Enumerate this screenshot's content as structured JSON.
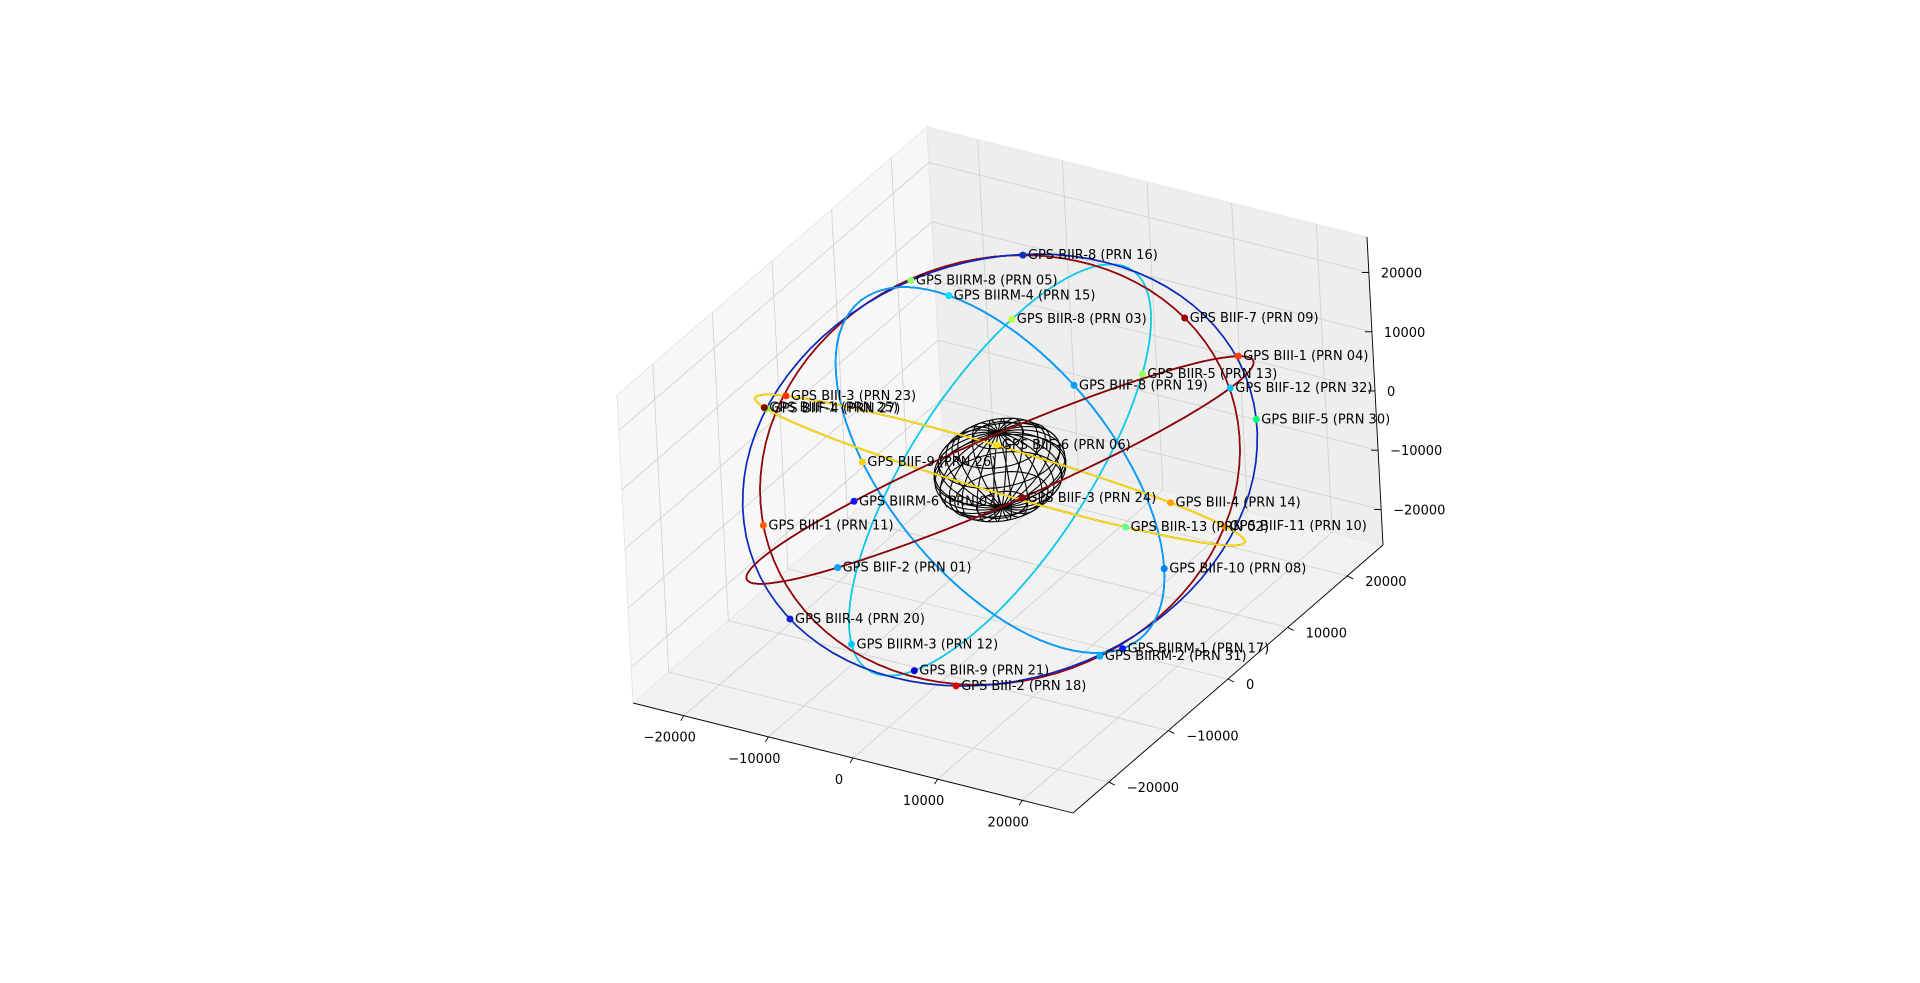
{
  "chart_data": {
    "type": "scatter",
    "projection": "3d",
    "title": "",
    "xlabel": "",
    "ylabel": "",
    "zlabel": "",
    "xlim": [
      -26000,
      26000
    ],
    "ylim": [
      -26000,
      26000
    ],
    "zlim": [
      -26000,
      26000
    ],
    "x_ticks": [
      "−20000",
      "−10000",
      "0",
      "10000",
      "20000"
    ],
    "x_tick_values": [
      -20000,
      -10000,
      0,
      10000,
      20000
    ],
    "y_ticks": [
      "−20000",
      "−10000",
      "0",
      "10000",
      "20000"
    ],
    "y_tick_values": [
      -20000,
      -10000,
      0,
      10000,
      20000
    ],
    "z_ticks": [
      "−20000",
      "−10000",
      "0",
      "10000",
      "20000"
    ],
    "z_tick_values": [
      -20000,
      -10000,
      0,
      10000,
      20000
    ],
    "grid": true,
    "earth_radius": 6371,
    "orbit_radius": 26560,
    "satellites": [
      {
        "label": "GPS BIIF-11 (PRN 10)",
        "color": "#ff8c00"
      },
      {
        "label": "GPS BIIF-4  (PRN 27)",
        "color": "#7fff00"
      },
      {
        "label": "GPS BIIF-10 (PRN 08)",
        "color": "#0080ff"
      },
      {
        "label": "GPS BIII-3  (PRN 23)",
        "color": "#ff3000"
      },
      {
        "label": "GPS BIIF-12 (PRN 32)",
        "color": "#00c0ff"
      },
      {
        "label": "GPS BIIR-9  (PRN 21)",
        "color": "#0000d0"
      },
      {
        "label": "GPS BIIR-8  (PRN 16)",
        "color": "#1030c0"
      },
      {
        "label": "GPS BIII-2  (PRN 18)",
        "color": "#e00000"
      },
      {
        "label": "GPS BIIRM-4 (PRN 15)",
        "color": "#00e0ff"
      },
      {
        "label": "GPS BIII-4  (PRN 14)",
        "color": "#ffa000"
      },
      {
        "label": "GPS BIIF-2  (PRN 01)",
        "color": "#00a0ff"
      },
      {
        "label": "GPS BIIR-5  (PRN 13)",
        "color": "#a0ff60"
      },
      {
        "label": "GPS BIII-1  (PRN 11)",
        "color": "#ff6000"
      },
      {
        "label": "GPS BIIF-5  (PRN 30)",
        "color": "#00ff80"
      },
      {
        "label": "GPS BIIF-9  (PRN 26)",
        "color": "#ffd000"
      },
      {
        "label": "GPS BIIR-13 (PRN 02)",
        "color": "#60ff90"
      },
      {
        "label": "GPS BIIRM-6 (PRN 07)",
        "color": "#1010ff"
      },
      {
        "label": "GPS BIIR-8  (PRN 03)",
        "color": "#c0ff40"
      },
      {
        "label": "GPS BIIRM-2 (PRN 31)",
        "color": "#00b0ff"
      },
      {
        "label": "GPS BIIRM-8 (PRN 05)",
        "color": "#90ff60"
      },
      {
        "label": "GPS BIIRM-1 (PRN 17)",
        "color": "#0020ff"
      },
      {
        "label": "GPS BIIF-1  (PRN 25)",
        "color": "#800000"
      },
      {
        "label": "GPS BIII-1  (PRN 04)",
        "color": "#ff4000"
      },
      {
        "label": "GPS BIIRM-3 (PRN 12)",
        "color": "#00c8ff"
      },
      {
        "label": "GPS BIIF-7  (PRN 09)",
        "color": "#a00000"
      },
      {
        "label": "GPS BIIR-4  (PRN 20)",
        "color": "#1020d0"
      },
      {
        "label": "GPS BIIF-8  (PRN 19)",
        "color": "#00a0ff"
      },
      {
        "label": "GPS BIIF-6  (PRN 06)",
        "color": "#ffe000"
      },
      {
        "label": "GPS BIIF-3  (PRN 24)",
        "color": "#900000"
      }
    ]
  }
}
